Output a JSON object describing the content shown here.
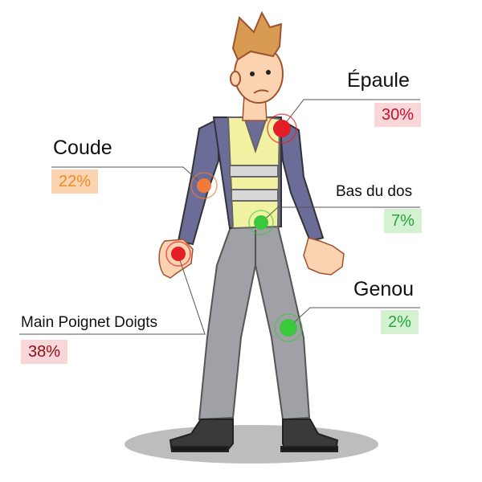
{
  "zones": [
    {
      "id": "epaule",
      "label": "Épaule",
      "percent": "30%",
      "color": "#e41e26"
    },
    {
      "id": "coude",
      "label": "Coude",
      "percent": "22%",
      "color": "#f07a3a"
    },
    {
      "id": "bas-du-dos",
      "label": "Bas du dos",
      "percent": "7%",
      "color": "#3cc83c"
    },
    {
      "id": "genou",
      "label": "Genou",
      "percent": "2%",
      "color": "#3cc83c"
    },
    {
      "id": "main",
      "label": "Main Poignet Doigts",
      "percent": "38%",
      "color": "#e41e26"
    }
  ]
}
